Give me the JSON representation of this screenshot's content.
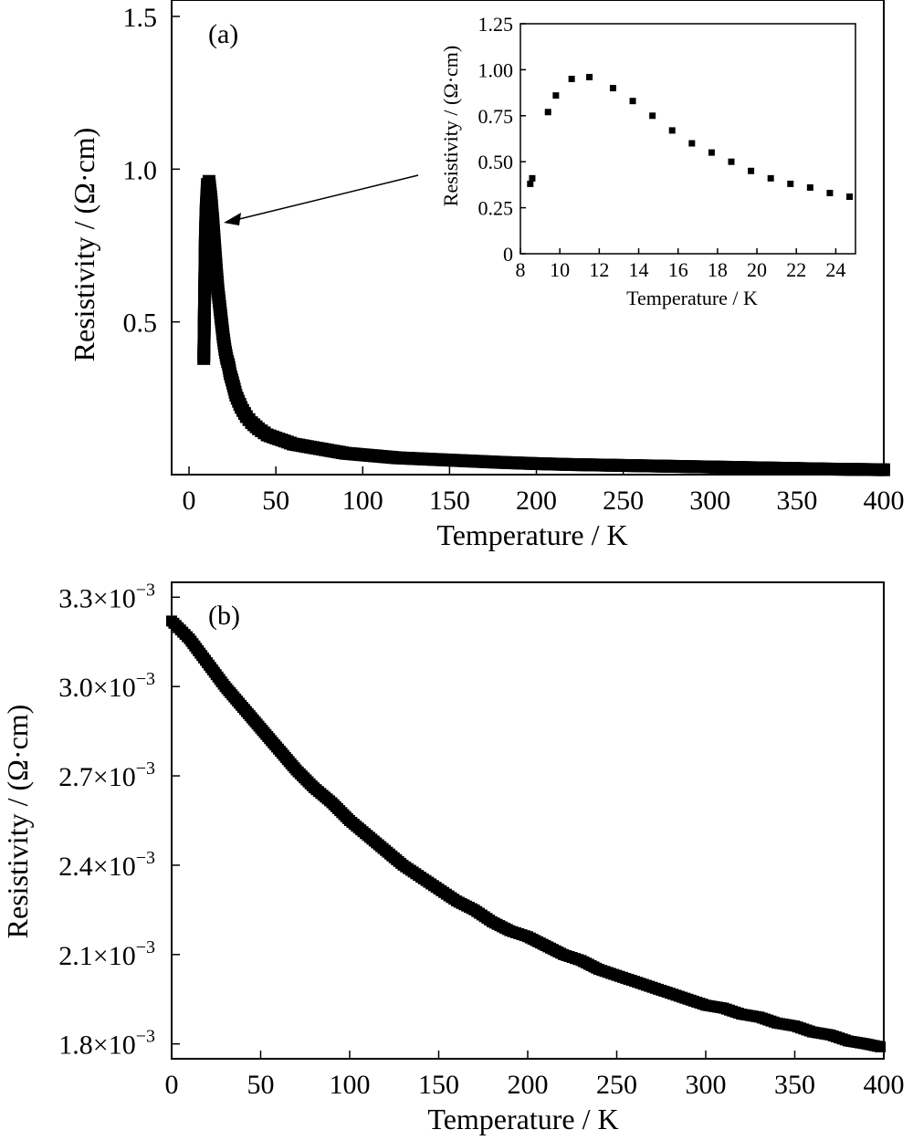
{
  "chart_data": [
    {
      "panel": "(a)",
      "type": "scatter",
      "xlabel": "Temperature / K",
      "ylabel": "Resistivity / (Ω·cm)",
      "xlim": [
        -10,
        400
      ],
      "ylim": [
        0,
        1.5
      ],
      "x_ticks": [
        0,
        50,
        100,
        150,
        200,
        250,
        300,
        350,
        400
      ],
      "y_ticks": [
        0.5,
        1.0,
        1.5
      ],
      "y_tick_labels": [
        "0.5",
        "1.0",
        "1.5"
      ],
      "marker": "square",
      "series": [
        {
          "x": [
            8.5,
            8.6,
            9.4,
            9.8,
            10.6,
            11.5,
            12.7,
            13.7,
            14.7,
            15.7,
            16.7,
            17.7,
            18.7,
            19.7,
            20.7,
            21.7,
            22.7,
            23.7,
            24.7,
            27,
            30,
            33,
            36,
            40,
            45,
            50,
            55,
            60,
            70,
            80,
            90,
            100,
            120,
            140,
            160,
            180,
            200,
            220,
            250,
            280,
            310,
            340,
            370,
            400
          ],
          "y": [
            0.38,
            0.41,
            0.77,
            0.86,
            0.95,
            0.96,
            0.9,
            0.83,
            0.75,
            0.67,
            0.6,
            0.55,
            0.5,
            0.45,
            0.41,
            0.38,
            0.36,
            0.33,
            0.31,
            0.26,
            0.22,
            0.19,
            0.17,
            0.15,
            0.13,
            0.12,
            0.11,
            0.1,
            0.09,
            0.08,
            0.07,
            0.065,
            0.055,
            0.05,
            0.045,
            0.04,
            0.036,
            0.033,
            0.03,
            0.027,
            0.024,
            0.021,
            0.018,
            0.016
          ]
        }
      ],
      "annotation": "arrow pointing to peak near 15 K"
    },
    {
      "panel": "inset",
      "type": "scatter",
      "xlabel": "Temperature / K",
      "ylabel": "Resistivity / (Ω·cm)",
      "xlim": [
        8,
        25
      ],
      "ylim": [
        0,
        1.25
      ],
      "x_ticks": [
        8,
        10,
        12,
        14,
        16,
        18,
        20,
        22,
        24
      ],
      "y_ticks": [
        0,
        0.25,
        0.5,
        0.75,
        1.0,
        1.25
      ],
      "y_tick_labels": [
        "0",
        "0.25",
        "0.50",
        "0.75",
        "1.00",
        "1.25"
      ],
      "marker": "square",
      "series": [
        {
          "x": [
            8.5,
            8.6,
            9.4,
            9.8,
            10.6,
            11.5,
            12.7,
            13.7,
            14.7,
            15.7,
            16.7,
            17.7,
            18.7,
            19.7,
            20.7,
            21.7,
            22.7,
            23.7,
            24.7
          ],
          "y": [
            0.38,
            0.41,
            0.77,
            0.86,
            0.95,
            0.96,
            0.9,
            0.83,
            0.75,
            0.67,
            0.6,
            0.55,
            0.5,
            0.45,
            0.41,
            0.38,
            0.36,
            0.33,
            0.31
          ]
        }
      ]
    },
    {
      "panel": "(b)",
      "type": "scatter",
      "xlabel": "Temperature / K",
      "ylabel": "Resistivity / (Ω·cm)",
      "xlim": [
        0,
        400
      ],
      "ylim": [
        0.00175,
        0.00335
      ],
      "x_ticks": [
        0,
        50,
        100,
        150,
        200,
        250,
        300,
        350,
        400
      ],
      "y_ticks": [
        0.0018,
        0.0021,
        0.0024,
        0.0027,
        0.003,
        0.0033
      ],
      "y_tick_labels": [
        "1.8×10",
        "2.1×10",
        "2.4×10",
        "2.7×10",
        "3.0×10",
        "3.3×10"
      ],
      "y_tick_exponent": "−3",
      "marker": "square",
      "series": [
        {
          "x": [
            0,
            5,
            10,
            20,
            30,
            40,
            50,
            60,
            70,
            80,
            90,
            100,
            110,
            120,
            130,
            140,
            150,
            160,
            170,
            180,
            190,
            200,
            210,
            220,
            230,
            240,
            250,
            260,
            270,
            280,
            290,
            300,
            310,
            320,
            330,
            340,
            350,
            360,
            370,
            380,
            390,
            398
          ],
          "y": [
            0.00322,
            0.00319,
            0.00316,
            0.00308,
            0.003,
            0.00293,
            0.00286,
            0.00279,
            0.00272,
            0.00266,
            0.00261,
            0.00255,
            0.0025,
            0.00245,
            0.0024,
            0.00236,
            0.00232,
            0.00228,
            0.00225,
            0.00221,
            0.00218,
            0.00216,
            0.00213,
            0.0021,
            0.00208,
            0.00205,
            0.00203,
            0.00201,
            0.00199,
            0.00197,
            0.00195,
            0.00193,
            0.00192,
            0.0019,
            0.00189,
            0.00187,
            0.00186,
            0.00184,
            0.00183,
            0.00181,
            0.0018,
            0.00179
          ]
        }
      ]
    }
  ]
}
